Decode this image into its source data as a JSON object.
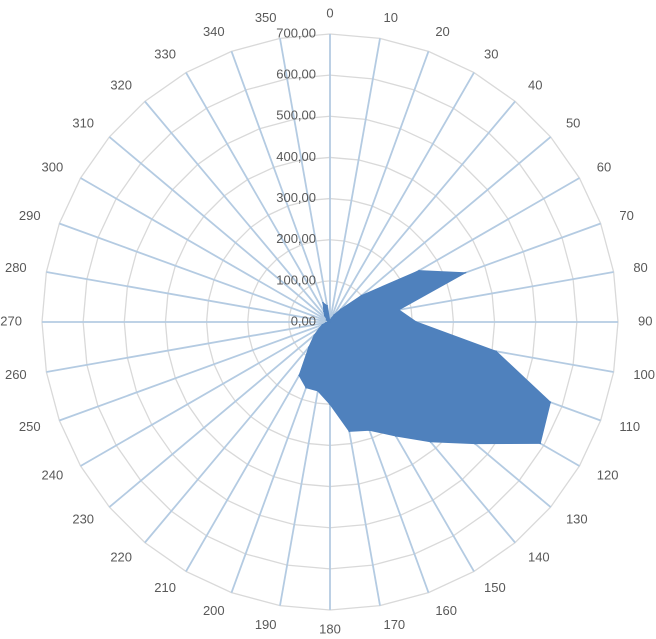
{
  "chart_data": {
    "type": "radar",
    "categories": [
      "0",
      "10",
      "20",
      "30",
      "40",
      "50",
      "60",
      "70",
      "80",
      "90",
      "100",
      "110",
      "120",
      "130",
      "140",
      "150",
      "160",
      "170",
      "180",
      "190",
      "200",
      "210",
      "220",
      "230",
      "240",
      "250",
      "260",
      "270",
      "280",
      "290",
      "300",
      "310",
      "320",
      "330",
      "340",
      "350"
    ],
    "series": [
      {
        "values": [
          0,
          5,
          10,
          20,
          40,
          100,
          250,
          350,
          170,
          210,
          410,
          570,
          590,
          460,
          380,
          320,
          280,
          270,
          200,
          170,
          170,
          150,
          80,
          50,
          30,
          20,
          10,
          5,
          5,
          5,
          10,
          10,
          20,
          30,
          50,
          40
        ],
        "color": "#4f81bd"
      }
    ],
    "rlim": [
      0,
      700
    ],
    "radial_ticks": [
      "0,00",
      "100,00",
      "200,00",
      "300,00",
      "400,00",
      "500,00",
      "600,00",
      "700,00"
    ],
    "grid": true,
    "legend": "none"
  }
}
